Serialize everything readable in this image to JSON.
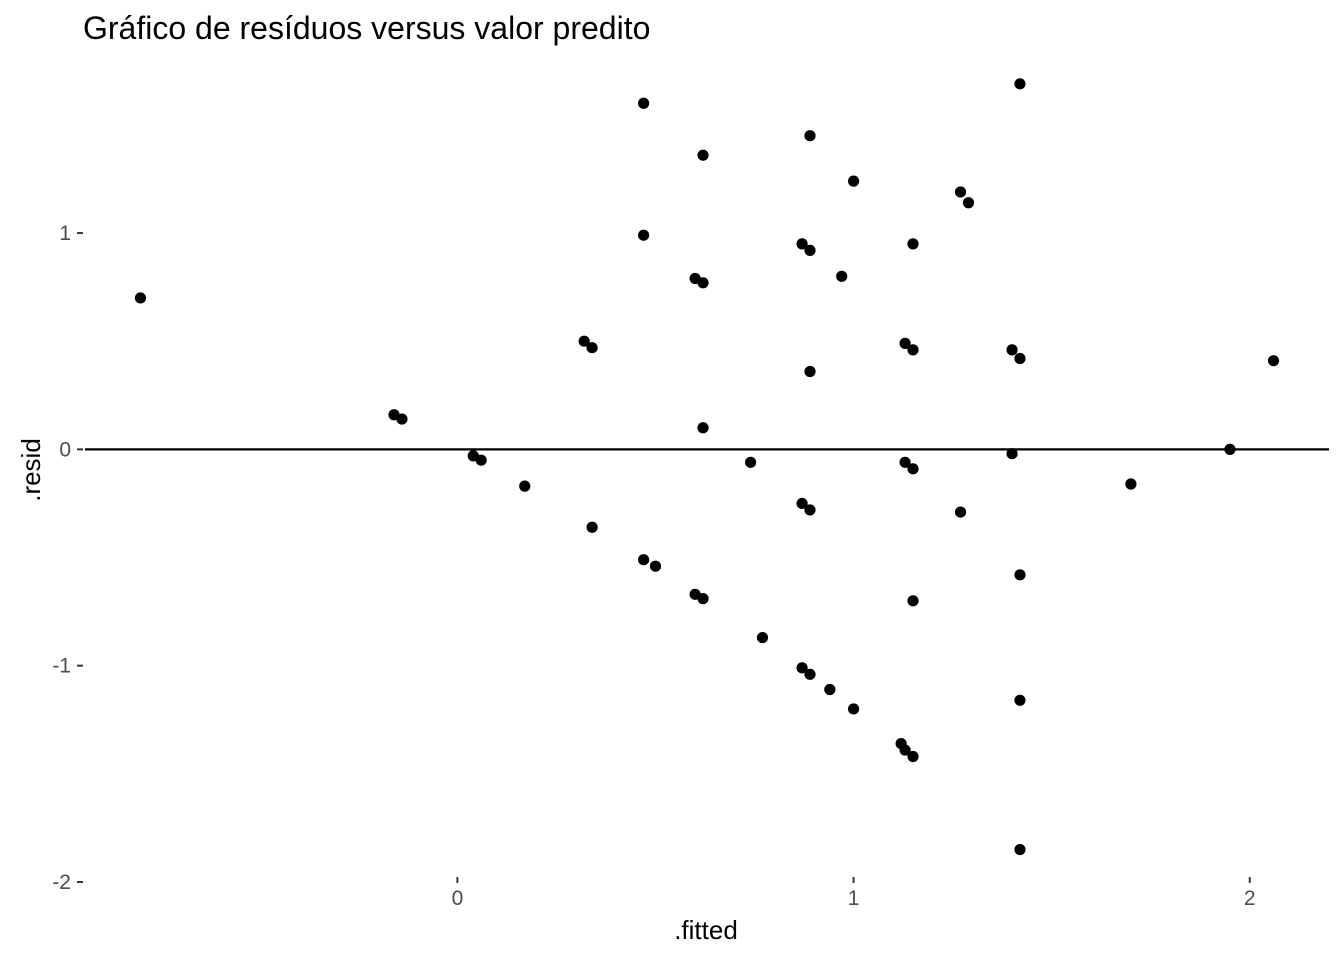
{
  "chart_data": {
    "type": "scatter",
    "title": "Gráfico de resíduos versus valor predito",
    "xlabel": ".fitted",
    "ylabel": ".resid",
    "xlim": [
      -0.94,
      2.2
    ],
    "ylim": [
      -2.0,
      1.8
    ],
    "x_ticks": [
      0,
      1,
      2
    ],
    "y_ticks": [
      -2,
      -1,
      0,
      1
    ],
    "hline": 0,
    "grid": false,
    "point_color": "#000000",
    "points": [
      {
        "x": -0.8,
        "y": 0.7
      },
      {
        "x": -0.16,
        "y": 0.16
      },
      {
        "x": -0.14,
        "y": 0.14
      },
      {
        "x": 0.04,
        "y": -0.03
      },
      {
        "x": 0.06,
        "y": -0.05
      },
      {
        "x": 0.17,
        "y": -0.17
      },
      {
        "x": 0.32,
        "y": 0.5
      },
      {
        "x": 0.34,
        "y": 0.47
      },
      {
        "x": 0.34,
        "y": -0.36
      },
      {
        "x": 0.47,
        "y": 1.6
      },
      {
        "x": 0.47,
        "y": 0.99
      },
      {
        "x": 0.47,
        "y": -0.51
      },
      {
        "x": 0.5,
        "y": -0.54
      },
      {
        "x": 0.6,
        "y": 0.79
      },
      {
        "x": 0.6,
        "y": -0.67
      },
      {
        "x": 0.62,
        "y": 1.36
      },
      {
        "x": 0.62,
        "y": 0.77
      },
      {
        "x": 0.62,
        "y": 0.1
      },
      {
        "x": 0.62,
        "y": -0.69
      },
      {
        "x": 0.74,
        "y": -0.06
      },
      {
        "x": 0.77,
        "y": -0.87
      },
      {
        "x": 0.87,
        "y": 0.95
      },
      {
        "x": 0.87,
        "y": -0.25
      },
      {
        "x": 0.87,
        "y": -1.01
      },
      {
        "x": 0.89,
        "y": 1.45
      },
      {
        "x": 0.89,
        "y": 0.92
      },
      {
        "x": 0.89,
        "y": 0.36
      },
      {
        "x": 0.89,
        "y": -0.28
      },
      {
        "x": 0.89,
        "y": -1.04
      },
      {
        "x": 0.94,
        "y": -1.11
      },
      {
        "x": 0.97,
        "y": 0.8
      },
      {
        "x": 1.0,
        "y": 1.24
      },
      {
        "x": 1.0,
        "y": -1.2
      },
      {
        "x": 1.12,
        "y": -1.36
      },
      {
        "x": 1.13,
        "y": 0.49
      },
      {
        "x": 1.13,
        "y": -0.06
      },
      {
        "x": 1.13,
        "y": -1.39
      },
      {
        "x": 1.15,
        "y": 0.95
      },
      {
        "x": 1.15,
        "y": 0.46
      },
      {
        "x": 1.15,
        "y": -0.09
      },
      {
        "x": 1.15,
        "y": -0.7
      },
      {
        "x": 1.15,
        "y": -1.42
      },
      {
        "x": 1.27,
        "y": 1.19
      },
      {
        "x": 1.27,
        "y": -0.29
      },
      {
        "x": 1.29,
        "y": 1.14
      },
      {
        "x": 1.4,
        "y": 0.46
      },
      {
        "x": 1.4,
        "y": -0.02
      },
      {
        "x": 1.42,
        "y": 1.69
      },
      {
        "x": 1.42,
        "y": 0.42
      },
      {
        "x": 1.42,
        "y": -0.58
      },
      {
        "x": 1.42,
        "y": -1.16
      },
      {
        "x": 1.42,
        "y": -1.85
      },
      {
        "x": 1.7,
        "y": -0.16
      },
      {
        "x": 1.95,
        "y": 0.0
      },
      {
        "x": 2.06,
        "y": 0.41
      }
    ]
  }
}
